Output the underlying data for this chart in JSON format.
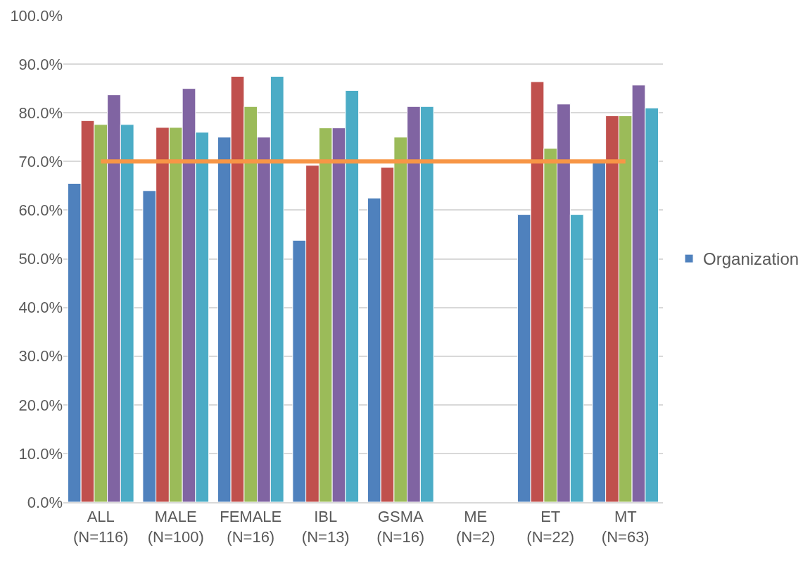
{
  "chart_data": {
    "type": "bar",
    "categories": [
      "ALL\n(N=116)",
      "MALE\n(N=100)",
      "FEMALE\n(N=16)",
      "IBL\n(N=13)",
      "GSMA\n(N=16)",
      "ME\n(N=2)",
      "ET\n(N=22)",
      "MT\n(N=63)"
    ],
    "series": [
      {
        "name": "Organization",
        "color": "#4f81bd",
        "values": [
          65.5,
          64.0,
          75.0,
          53.8,
          62.5,
          null,
          59.1,
          69.8
        ]
      },
      {
        "color": "#c0504d",
        "values": [
          78.4,
          77.0,
          87.5,
          69.2,
          68.8,
          null,
          86.4,
          79.4
        ]
      },
      {
        "color": "#9bbb59",
        "values": [
          77.6,
          77.0,
          81.3,
          76.9,
          75.0,
          null,
          72.7,
          79.4
        ]
      },
      {
        "color": "#8064a2",
        "values": [
          83.7,
          85.0,
          75.0,
          76.9,
          81.3,
          null,
          81.8,
          85.7
        ]
      },
      {
        "color": "#4bacc6",
        "values": [
          77.6,
          76.0,
          87.5,
          84.6,
          81.3,
          null,
          59.1,
          81.0
        ]
      },
      {
        "type": "line",
        "color": "#f79646",
        "values": [
          70,
          70,
          70,
          70,
          70,
          70,
          70,
          70
        ]
      }
    ],
    "ylim": [
      0,
      100
    ],
    "yticks": [
      {
        "value": 0,
        "label": "0.0%"
      },
      {
        "value": 10,
        "label": "10.0%"
      },
      {
        "value": 20,
        "label": "20.0%"
      },
      {
        "value": 30,
        "label": "30.0%"
      },
      {
        "value": 40,
        "label": "40.0%"
      },
      {
        "value": 50,
        "label": "50.0%"
      },
      {
        "value": 60,
        "label": "60.0%"
      },
      {
        "value": 70,
        "label": "70.0%"
      },
      {
        "value": 80,
        "label": "80.0%"
      },
      {
        "value": 90,
        "label": "90.0%"
      },
      {
        "value": 100,
        "label": "100.0%"
      }
    ],
    "grid": "y",
    "legend": "right"
  }
}
